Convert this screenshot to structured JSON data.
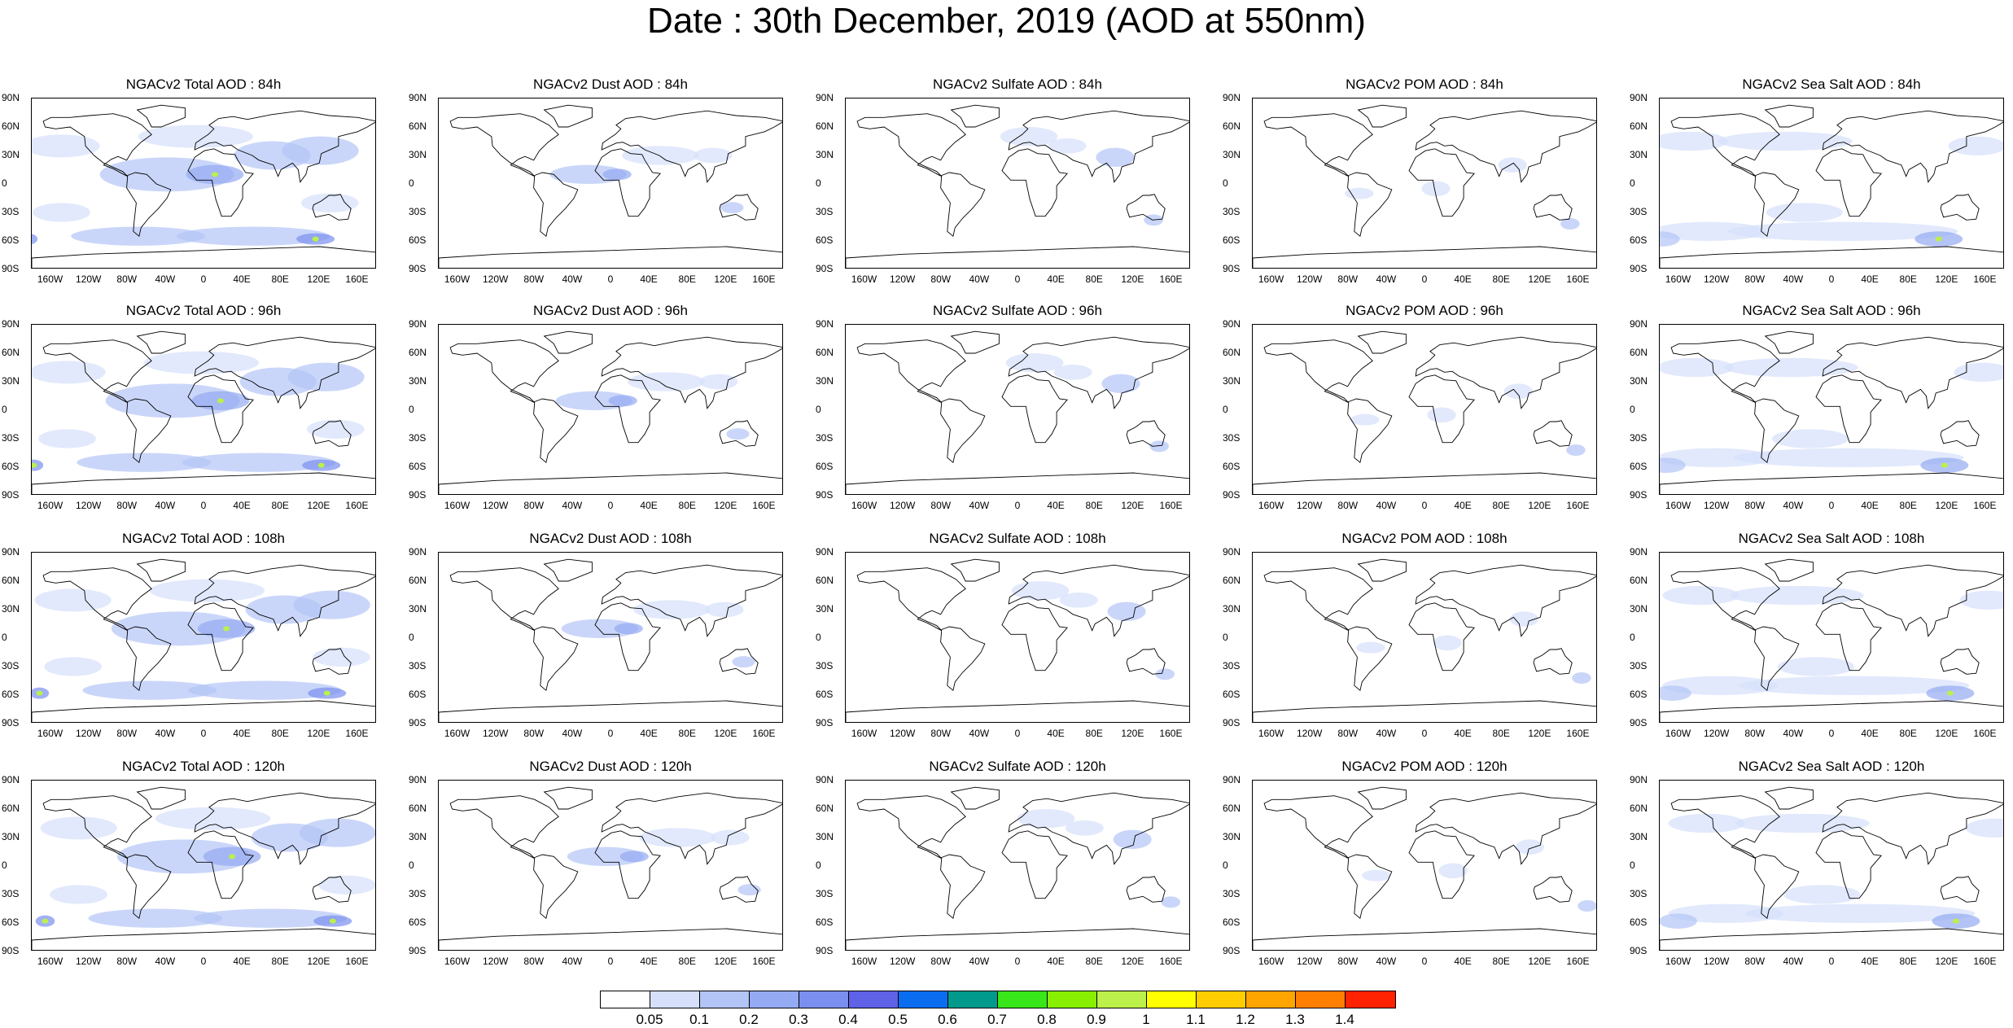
{
  "title": "Date : 30th December, 2019 (AOD at 550nm)",
  "panel_titles": [
    [
      "NGACv2 Total AOD : 84h",
      "NGACv2 Dust AOD : 84h",
      "NGACv2 Sulfate AOD : 84h",
      "NGACv2 POM AOD : 84h",
      "NGACv2 Sea Salt AOD : 84h"
    ],
    [
      "NGACv2 Total AOD : 96h",
      "NGACv2 Dust AOD : 96h",
      "NGACv2 Sulfate AOD : 96h",
      "NGACv2 POM AOD : 96h",
      "NGACv2 Sea Salt AOD : 96h"
    ],
    [
      "NGACv2 Total AOD : 108h",
      "NGACv2 Dust AOD : 108h",
      "NGACv2 Sulfate AOD : 108h",
      "NGACv2 POM AOD : 108h",
      "NGACv2 Sea Salt AOD : 108h"
    ],
    [
      "NGACv2 Total AOD : 120h",
      "NGACv2 Dust AOD : 120h",
      "NGACv2 Sulfate AOD : 120h",
      "NGACv2 POM AOD : 120h",
      "NGACv2 Sea Salt  AOD : 120h"
    ]
  ],
  "lat_labels": [
    "90N",
    "60N",
    "30N",
    "0",
    "30S",
    "60S",
    "90S"
  ],
  "lon_labels": [
    "160W",
    "120W",
    "80W",
    "40W",
    "0",
    "40E",
    "80E",
    "120E",
    "160E"
  ],
  "colorbar": {
    "labels": [
      "0.05",
      "0.1",
      "0.2",
      "0.3",
      "0.4",
      "0.5",
      "0.6",
      "0.7",
      "0.8",
      "0.9",
      "1",
      "1.1",
      "1.2",
      "1.3",
      "1.4"
    ],
    "colors": [
      "#ffffff",
      "#d6e0fb",
      "#b3c4f6",
      "#94aaf2",
      "#7b8ff0",
      "#5f62e6",
      "#0a6df0",
      "#00998c",
      "#38e61a",
      "#88ef00",
      "#bcf04a",
      "#ffff00",
      "#ffcd00",
      "#ffa500",
      "#ff7f00",
      "#ff2200"
    ]
  },
  "land_color": "#ffffff",
  "plume_color": "#94aaf2"
}
